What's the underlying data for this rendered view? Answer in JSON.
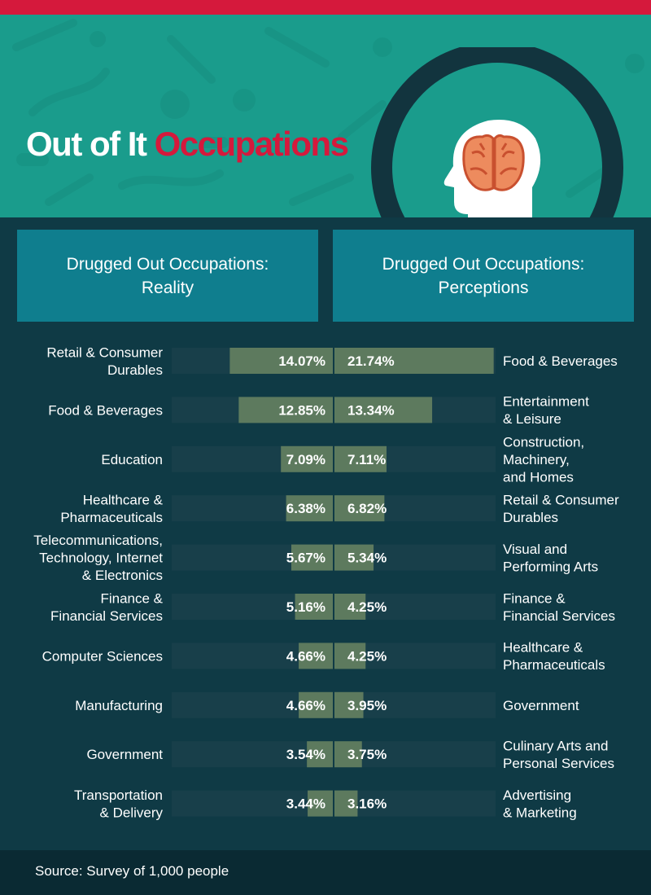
{
  "title": {
    "part1": "Out of It",
    "part2": "Occupations"
  },
  "panels": {
    "left": {
      "line1": "Drugged Out Occupations:",
      "line2": "Reality"
    },
    "right": {
      "line1": "Drugged Out Occupations:",
      "line2": "Perceptions"
    }
  },
  "colors": {
    "bar": "#5d7a5e",
    "track": "#183f4a",
    "text": "#ffffff",
    "accent": "#d5193c"
  },
  "chart_data": {
    "type": "bar",
    "orientation": "horizontal-diverging",
    "xlim": [
      0,
      22
    ],
    "series": [
      {
        "name": "Drugged Out Occupations: Reality",
        "side": "left",
        "categories": [
          [
            "Retail & Consumer",
            "Durables"
          ],
          [
            "Food & Beverages"
          ],
          [
            "Education"
          ],
          [
            "Healthcare &",
            "Pharmaceuticals"
          ],
          [
            "Telecommunications,",
            "Technology, Internet",
            "& Electronics"
          ],
          [
            "Finance &",
            "Financial Services"
          ],
          [
            "Computer Sciences"
          ],
          [
            "Manufacturing"
          ],
          [
            "Government"
          ],
          [
            "Transportation",
            "& Delivery"
          ]
        ],
        "values": [
          14.07,
          12.85,
          7.09,
          6.38,
          5.67,
          5.16,
          4.66,
          4.66,
          3.54,
          3.44
        ],
        "labels": [
          "14.07%",
          "12.85%",
          "7.09%",
          "6.38%",
          "5.67%",
          "5.16%",
          "4.66%",
          "4.66%",
          "3.54%",
          "3.44%"
        ]
      },
      {
        "name": "Drugged Out Occupations: Perceptions",
        "side": "right",
        "categories": [
          [
            "Food & Beverages"
          ],
          [
            "Entertainment",
            "& Leisure"
          ],
          [
            "Construction,",
            "Machinery,",
            "and Homes"
          ],
          [
            "Retail & Consumer",
            "Durables"
          ],
          [
            "Visual and",
            "Performing Arts"
          ],
          [
            "Finance &",
            "Financial Services"
          ],
          [
            "Healthcare &",
            "Pharmaceuticals"
          ],
          [
            "Government"
          ],
          [
            "Culinary Arts and",
            "Personal Services"
          ],
          [
            "Advertising",
            "& Marketing"
          ]
        ],
        "values": [
          21.74,
          13.34,
          7.11,
          6.82,
          5.34,
          4.25,
          4.25,
          3.95,
          3.75,
          3.16
        ],
        "labels": [
          "21.74%",
          "13.34%",
          "7.11%",
          "6.82%",
          "5.34%",
          "4.25%",
          "4.25%",
          "3.95%",
          "3.75%",
          "3.16%"
        ]
      }
    ]
  },
  "footer": {
    "source": "Source: Survey of 1,000 people"
  }
}
